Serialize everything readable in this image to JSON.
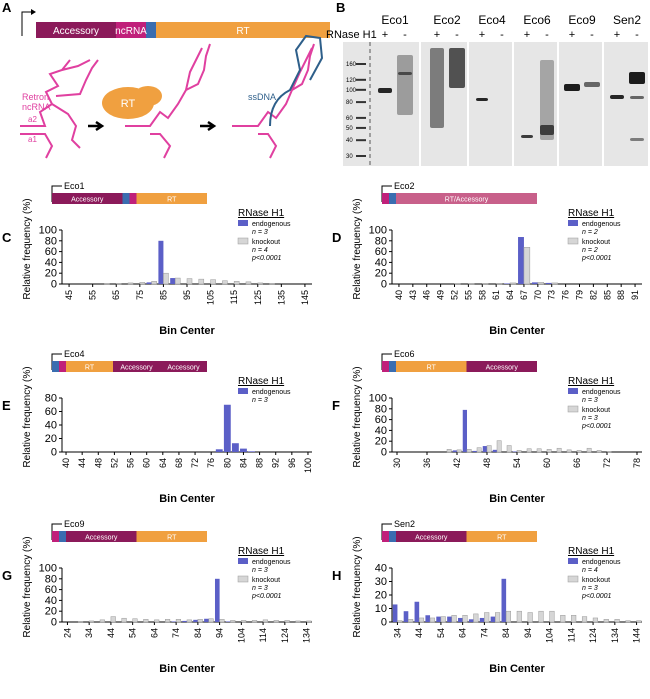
{
  "panel_a": {
    "letter": "A",
    "gene": [
      "Accessory",
      "ncRNA",
      "RT"
    ],
    "label_lines": [
      "Retron",
      "ncRNA"
    ],
    "rt": "RT",
    "ssdna": "ssDNA",
    "a2": "a2",
    "a1": "a1"
  },
  "panel_b": {
    "letter": "B",
    "lanes": [
      "Eco1",
      "Eco2",
      "Eco4",
      "Eco6",
      "Eco9",
      "Sen2"
    ],
    "rnase": "RNase H1",
    "signs": [
      "+",
      "-"
    ],
    "markers": [
      160,
      120,
      100,
      80,
      60,
      50,
      40,
      30
    ]
  },
  "chart_data": [
    {
      "type": "bar",
      "letter": "C",
      "gene": {
        "name": "Eco1",
        "segments": [
          {
            "color": "#8b1a5a",
            "label": "Accessory"
          },
          {
            "color": "#3a6db0"
          },
          {
            "color": "#c0207a"
          },
          {
            "color": "#f0a040",
            "label": "RT"
          }
        ]
      },
      "xlabel": "Bin Center",
      "ylabel": "Relative frequency (%)",
      "legend_title": "RNase H1",
      "pvalue": "p<0.0001",
      "x": [
        45,
        50,
        55,
        60,
        65,
        70,
        75,
        80,
        85,
        90,
        95,
        100,
        105,
        110,
        115,
        120,
        125,
        130,
        135,
        140,
        145
      ],
      "xlim": [
        42,
        148
      ],
      "xticks": [
        45,
        55,
        65,
        75,
        85,
        95,
        105,
        115,
        125,
        135,
        145
      ],
      "ylim": [
        0,
        100
      ],
      "yticks": [
        0,
        20,
        40,
        60,
        80,
        100
      ],
      "series": [
        {
          "name": "endogenous",
          "note": "n = 3",
          "color": "#5b5fc7",
          "values": [
            0,
            0,
            0,
            0,
            0,
            0,
            0,
            3,
            80,
            11,
            0,
            0,
            0,
            0,
            0,
            0,
            0,
            0,
            0,
            0,
            0
          ]
        },
        {
          "name": "knockout",
          "note": "n = 4",
          "color": "#d6d6d6",
          "values": [
            0,
            0,
            0,
            1,
            1,
            2,
            3,
            5,
            20,
            11,
            10,
            9,
            8,
            6,
            5,
            4,
            2,
            1,
            0,
            0,
            0
          ]
        }
      ]
    },
    {
      "type": "bar",
      "letter": "D",
      "gene": {
        "name": "Eco2",
        "segments": [
          {
            "color": "#c0207a"
          },
          {
            "color": "#3a6db0"
          },
          {
            "color": "#c8608a",
            "label": "RT/Accessory"
          }
        ]
      },
      "xlabel": "Bin Center",
      "ylabel": "Relative frequency (%)",
      "legend_title": "RNase H1",
      "pvalue": "p<0.0001",
      "x": [
        40,
        43,
        46,
        49,
        52,
        55,
        58,
        61,
        64,
        67,
        70,
        73,
        76,
        79,
        82,
        85,
        88,
        91
      ],
      "xlim": [
        38.5,
        92.5
      ],
      "xticks": [
        40,
        43,
        46,
        49,
        52,
        55,
        58,
        61,
        64,
        67,
        70,
        73,
        76,
        79,
        82,
        85,
        88,
        91
      ],
      "ylim": [
        0,
        100
      ],
      "yticks": [
        0,
        20,
        40,
        60,
        80,
        100
      ],
      "series": [
        {
          "name": "endogenous",
          "note": "n = 2",
          "color": "#5b5fc7",
          "values": [
            0,
            0,
            0,
            0,
            0,
            0,
            0,
            0,
            1,
            87,
            3,
            2,
            0,
            0,
            0,
            0,
            0,
            0
          ]
        },
        {
          "name": "knockout",
          "note": "n = 2",
          "color": "#d6d6d6",
          "values": [
            0,
            0,
            0,
            0,
            1,
            1,
            1,
            1,
            2,
            68,
            3,
            2,
            0,
            0,
            0,
            0,
            0,
            0
          ]
        }
      ]
    },
    {
      "type": "bar",
      "letter": "E",
      "gene": {
        "name": "Eco4",
        "segments": [
          {
            "color": "#3a6db0"
          },
          {
            "color": "#c0207a"
          },
          {
            "color": "#f0a040",
            "label": "RT"
          },
          {
            "color": "#8b1a5a",
            "label": "Accessory"
          },
          {
            "color": "#8b1a5a",
            "label": "Accessory"
          }
        ]
      },
      "xlabel": "Bin Center",
      "ylabel": "Relative frequency (%)",
      "legend_title": "RNase H1",
      "x": [
        40,
        42,
        44,
        46,
        48,
        50,
        52,
        54,
        56,
        58,
        60,
        62,
        64,
        66,
        68,
        70,
        72,
        74,
        76,
        78,
        80,
        82,
        84,
        86,
        88,
        90,
        92,
        94,
        96,
        98,
        100
      ],
      "xlim": [
        39,
        101
      ],
      "xticks": [
        40,
        44,
        48,
        52,
        56,
        60,
        64,
        68,
        72,
        76,
        80,
        84,
        88,
        92,
        96,
        100
      ],
      "ylim": [
        0,
        80
      ],
      "yticks": [
        0,
        20,
        40,
        60,
        80
      ],
      "series": [
        {
          "name": "endogenous",
          "note": "n = 3",
          "color": "#5b5fc7",
          "values": [
            0,
            0,
            0,
            0,
            0,
            0,
            0,
            0,
            0,
            0,
            0,
            0,
            0,
            0,
            0,
            0,
            0,
            0,
            0,
            4,
            70,
            13,
            5,
            1,
            0,
            0,
            0,
            0,
            0,
            0,
            0
          ]
        }
      ]
    },
    {
      "type": "bar",
      "letter": "F",
      "gene": {
        "name": "Eco6",
        "segments": [
          {
            "color": "#c0207a"
          },
          {
            "color": "#3a6db0"
          },
          {
            "color": "#f0a040",
            "label": "RT"
          },
          {
            "color": "#8b1a5a",
            "label": "Accessory"
          }
        ]
      },
      "xlabel": "Bin Center",
      "ylabel": "Relative frequency (%)",
      "legend_title": "RNase H1",
      "pvalue": "p<0.0001",
      "x": [
        30,
        32,
        34,
        36,
        38,
        40,
        42,
        44,
        46,
        48,
        50,
        52,
        54,
        56,
        58,
        60,
        62,
        64,
        66,
        68,
        70,
        72,
        74,
        76,
        78
      ],
      "xlim": [
        29,
        79
      ],
      "xticks": [
        30,
        36,
        42,
        48,
        54,
        60,
        66,
        72,
        78
      ],
      "ylim": [
        0,
        100
      ],
      "yticks": [
        0,
        20,
        40,
        60,
        80,
        100
      ],
      "series": [
        {
          "name": "endogenous",
          "note": "n = 3",
          "color": "#5b5fc7",
          "values": [
            0,
            0,
            0,
            0,
            0,
            0,
            3,
            78,
            2,
            11,
            4,
            0,
            1,
            0,
            0,
            0,
            0,
            0,
            0,
            0,
            0,
            0,
            0,
            0,
            0
          ]
        },
        {
          "name": "knockout",
          "note": "n = 3",
          "color": "#d6d6d6",
          "values": [
            0,
            0,
            0,
            0,
            0,
            5,
            4,
            5,
            8,
            12,
            21,
            12,
            3,
            6,
            6,
            5,
            7,
            4,
            3,
            7,
            3,
            1,
            0,
            0,
            0
          ]
        }
      ]
    },
    {
      "type": "bar",
      "letter": "G",
      "gene": {
        "name": "Eco9",
        "segments": [
          {
            "color": "#c0207a"
          },
          {
            "color": "#3a6db0"
          },
          {
            "color": "#8b1a5a",
            "label": "Accessory"
          },
          {
            "color": "#f0a040",
            "label": "RT"
          }
        ]
      },
      "xlabel": "Bin Center",
      "ylabel": "Relative frequency (%)",
      "legend_title": "RNase H1",
      "pvalue": "p<0.0001",
      "x": [
        24,
        29,
        34,
        39,
        44,
        49,
        54,
        59,
        64,
        69,
        74,
        79,
        84,
        89,
        94,
        99,
        104,
        109,
        114,
        119,
        124,
        129,
        134
      ],
      "xlim": [
        21.5,
        136.5
      ],
      "xticks": [
        24,
        34,
        44,
        54,
        64,
        74,
        84,
        94,
        104,
        114,
        124,
        134
      ],
      "ylim": [
        0,
        100
      ],
      "yticks": [
        0,
        20,
        40,
        60,
        80,
        100
      ],
      "series": [
        {
          "name": "endogenous",
          "note": "n = 3",
          "color": "#5b5fc7",
          "values": [
            0,
            0,
            0,
            0,
            0,
            0,
            0,
            0,
            0,
            0,
            1,
            2,
            4,
            6,
            80,
            1,
            0,
            0,
            0,
            0,
            0,
            0,
            0
          ]
        },
        {
          "name": "knockout",
          "note": "n = 3",
          "color": "#d6d6d6",
          "values": [
            0,
            1,
            2,
            4,
            10,
            7,
            6,
            5,
            4,
            5,
            5,
            4,
            5,
            6,
            5,
            3,
            3,
            3,
            4,
            3,
            3,
            2,
            2
          ]
        }
      ]
    },
    {
      "type": "bar",
      "letter": "H",
      "gene": {
        "name": "Sen2",
        "segments": [
          {
            "color": "#c0207a"
          },
          {
            "color": "#3a6db0"
          },
          {
            "color": "#8b1a5a",
            "label": "Accessory"
          },
          {
            "color": "#f0a040",
            "label": "RT"
          }
        ]
      },
      "xlabel": "Bin Center",
      "ylabel": "Relative frequency (%)",
      "legend_title": "RNase H1",
      "pvalue": "p<0.0001",
      "x": [
        34,
        39,
        44,
        49,
        54,
        59,
        64,
        69,
        74,
        79,
        84,
        89,
        94,
        99,
        104,
        109,
        114,
        119,
        124,
        129,
        134,
        139,
        144
      ],
      "xlim": [
        31.5,
        146.5
      ],
      "xticks": [
        34,
        44,
        54,
        64,
        74,
        84,
        94,
        104,
        114,
        124,
        134,
        144
      ],
      "ylim": [
        0,
        40
      ],
      "yticks": [
        0,
        10,
        20,
        30,
        40
      ],
      "series": [
        {
          "name": "endogenous",
          "note": "n = 4",
          "color": "#5b5fc7",
          "values": [
            13,
            8,
            15,
            5,
            4,
            4,
            3,
            2,
            3,
            4,
            32,
            0,
            0,
            0,
            0,
            0,
            0,
            0,
            0,
            0,
            0,
            0,
            0
          ]
        },
        {
          "name": "knockout",
          "note": "n = 3",
          "color": "#d6d6d6",
          "values": [
            1,
            2,
            3,
            3,
            4,
            5,
            5,
            6,
            7,
            7,
            8,
            8,
            7,
            8,
            8,
            5,
            5,
            4,
            3,
            2,
            2,
            1,
            1
          ]
        }
      ]
    }
  ]
}
